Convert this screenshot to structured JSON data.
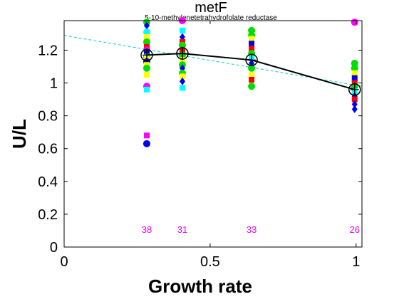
{
  "chart_data": {
    "type": "scatter",
    "title": "metF",
    "subtitle": "5-10-methylenetetrahydrofolate reductase",
    "xlabel": "Growth rate",
    "ylabel": "U/L",
    "xlim": [
      0,
      1.02
    ],
    "ylim": [
      0,
      1.38
    ],
    "xticks": [
      {
        "value": 0,
        "label": "0"
      },
      {
        "value": 0.5,
        "label": "0.5"
      },
      {
        "value": 1,
        "label": "1"
      }
    ],
    "yticks": [
      {
        "value": 0,
        "label": "0"
      },
      {
        "value": 0.2,
        "label": "0.2"
      },
      {
        "value": 0.4,
        "label": "0.4"
      },
      {
        "value": 0.6,
        "label": "0.6"
      },
      {
        "value": 0.8,
        "label": "0.8"
      },
      {
        "value": 1.0,
        "label": "1"
      },
      {
        "value": 1.2,
        "label": "1.2"
      }
    ],
    "grid": false,
    "points": [
      {
        "x": 0.283,
        "y": 1.37,
        "shape": "circle",
        "color": "#00dd00"
      },
      {
        "x": 0.283,
        "y": 1.35,
        "shape": "diamond",
        "color": "#0000ee"
      },
      {
        "x": 0.283,
        "y": 1.31,
        "shape": "circle",
        "color": "#00ffff"
      },
      {
        "x": 0.283,
        "y": 1.28,
        "shape": "square",
        "color": "#ffff00"
      },
      {
        "x": 0.283,
        "y": 1.25,
        "shape": "circle",
        "color": "#00dd00"
      },
      {
        "x": 0.283,
        "y": 1.22,
        "shape": "square",
        "color": "#ff0000"
      },
      {
        "x": 0.283,
        "y": 1.2,
        "shape": "circle",
        "color": "#ff00ff"
      },
      {
        "x": 0.283,
        "y": 1.19,
        "shape": "square",
        "color": "#0000ee"
      },
      {
        "x": 0.283,
        "y": 1.16,
        "shape": "circle",
        "color": "#00dd00"
      },
      {
        "x": 0.283,
        "y": 1.15,
        "shape": "square",
        "color": "#ffff00"
      },
      {
        "x": 0.283,
        "y": 1.13,
        "shape": "circle",
        "color": "#0000ee"
      },
      {
        "x": 0.283,
        "y": 1.11,
        "shape": "square",
        "color": "#ffff00"
      },
      {
        "x": 0.283,
        "y": 1.09,
        "shape": "circle",
        "color": "#00dd00"
      },
      {
        "x": 0.283,
        "y": 1.05,
        "shape": "square",
        "color": "#ffff00"
      },
      {
        "x": 0.283,
        "y": 0.98,
        "shape": "circle",
        "color": "#ff00ff"
      },
      {
        "x": 0.283,
        "y": 0.96,
        "shape": "square",
        "color": "#00ffff"
      },
      {
        "x": 0.283,
        "y": 0.68,
        "shape": "square",
        "color": "#ff00ff"
      },
      {
        "x": 0.283,
        "y": 0.63,
        "shape": "circle",
        "color": "#0000ee"
      },
      {
        "x": 0.405,
        "y": 1.38,
        "shape": "circle",
        "color": "#ff00ff"
      },
      {
        "x": 0.405,
        "y": 1.32,
        "shape": "square",
        "color": "#00ffff"
      },
      {
        "x": 0.405,
        "y": 1.28,
        "shape": "diamond",
        "color": "#0000ee"
      },
      {
        "x": 0.405,
        "y": 1.25,
        "shape": "square",
        "color": "#ff0000"
      },
      {
        "x": 0.405,
        "y": 1.23,
        "shape": "circle",
        "color": "#00dd00"
      },
      {
        "x": 0.405,
        "y": 1.2,
        "shape": "square",
        "color": "#ff0000"
      },
      {
        "x": 0.405,
        "y": 1.17,
        "shape": "circle",
        "color": "#00dd00"
      },
      {
        "x": 0.405,
        "y": 1.14,
        "shape": "square",
        "color": "#ffff00"
      },
      {
        "x": 0.405,
        "y": 1.11,
        "shape": "circle",
        "color": "#00dd00"
      },
      {
        "x": 0.405,
        "y": 1.09,
        "shape": "diamond",
        "color": "#0000ee"
      },
      {
        "x": 0.405,
        "y": 1.06,
        "shape": "circle",
        "color": "#00dd00"
      },
      {
        "x": 0.405,
        "y": 1.04,
        "shape": "square",
        "color": "#ffff00"
      },
      {
        "x": 0.405,
        "y": 1.01,
        "shape": "diamond",
        "color": "#0000ee"
      },
      {
        "x": 0.405,
        "y": 0.97,
        "shape": "square",
        "color": "#00ffff"
      },
      {
        "x": 0.642,
        "y": 1.32,
        "shape": "circle",
        "color": "#00dd00"
      },
      {
        "x": 0.642,
        "y": 1.29,
        "shape": "circle",
        "color": "#00dd00"
      },
      {
        "x": 0.642,
        "y": 1.27,
        "shape": "square",
        "color": "#ffff00"
      },
      {
        "x": 0.642,
        "y": 1.24,
        "shape": "square",
        "color": "#0000ee"
      },
      {
        "x": 0.642,
        "y": 1.21,
        "shape": "square",
        "color": "#ff0000"
      },
      {
        "x": 0.642,
        "y": 1.18,
        "shape": "circle",
        "color": "#00dd00"
      },
      {
        "x": 0.642,
        "y": 1.15,
        "shape": "square",
        "color": "#00ffff"
      },
      {
        "x": 0.642,
        "y": 1.12,
        "shape": "diamond",
        "color": "#0000ee"
      },
      {
        "x": 0.642,
        "y": 1.09,
        "shape": "circle",
        "color": "#00dd00"
      },
      {
        "x": 0.642,
        "y": 1.05,
        "shape": "square",
        "color": "#ffff00"
      },
      {
        "x": 0.642,
        "y": 1.02,
        "shape": "square",
        "color": "#ff0000"
      },
      {
        "x": 0.642,
        "y": 0.98,
        "shape": "circle",
        "color": "#00dd00"
      },
      {
        "x": 0.995,
        "y": 1.37,
        "shape": "circle",
        "color": "#ff00ff"
      },
      {
        "x": 0.995,
        "y": 1.12,
        "shape": "circle",
        "color": "#00dd00"
      },
      {
        "x": 0.995,
        "y": 1.09,
        "shape": "circle",
        "color": "#00dd00"
      },
      {
        "x": 0.995,
        "y": 1.06,
        "shape": "square",
        "color": "#ffff00"
      },
      {
        "x": 0.995,
        "y": 1.03,
        "shape": "square",
        "color": "#0000ee"
      },
      {
        "x": 0.995,
        "y": 1.0,
        "shape": "square",
        "color": "#ff0000"
      },
      {
        "x": 0.995,
        "y": 0.98,
        "shape": "circle",
        "color": "#00dd00"
      },
      {
        "x": 0.995,
        "y": 0.95,
        "shape": "square",
        "color": "#00ffff"
      },
      {
        "x": 0.995,
        "y": 0.92,
        "shape": "diamond",
        "color": "#0000ee"
      },
      {
        "x": 0.995,
        "y": 0.9,
        "shape": "square",
        "color": "#ff0000"
      },
      {
        "x": 0.995,
        "y": 0.87,
        "shape": "diamond",
        "color": "#0000ee"
      },
      {
        "x": 0.995,
        "y": 0.84,
        "shape": "diamond",
        "color": "#0000ee"
      }
    ],
    "mean_line": {
      "color": "#000000",
      "points": [
        {
          "x": 0.283,
          "y": 1.17,
          "err": 0.04
        },
        {
          "x": 0.405,
          "y": 1.18,
          "err": 0.04
        },
        {
          "x": 0.642,
          "y": 1.14,
          "err": 0.03
        },
        {
          "x": 0.995,
          "y": 0.96,
          "err": 0.04
        }
      ]
    },
    "fit_line": {
      "color": "#00cccc",
      "x": [
        0,
        1.02
      ],
      "y": [
        1.29,
        0.98
      ]
    },
    "count_labels": [
      {
        "x": 0.283,
        "label": "38"
      },
      {
        "x": 0.405,
        "label": "31"
      },
      {
        "x": 0.642,
        "label": "33"
      },
      {
        "x": 0.995,
        "label": "26"
      }
    ],
    "count_label_color": "#ee00ee"
  }
}
